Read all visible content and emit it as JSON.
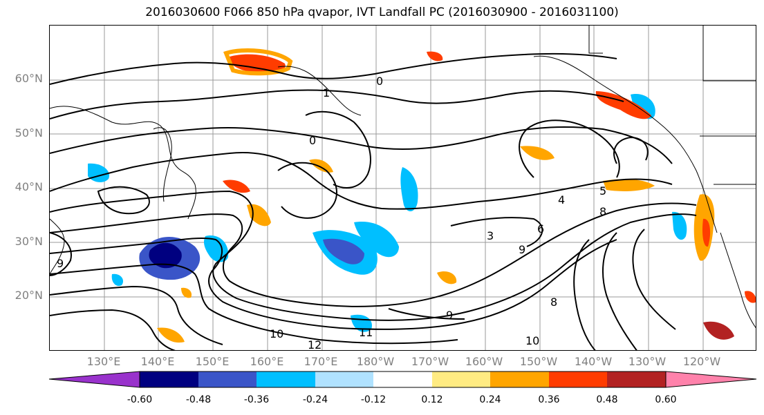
{
  "title": "2016030600 F066 850 hPa qvapor, IVT Landfall PC (2016030900 - 2016031100)",
  "lat_labels": [
    "60°N",
    "50°N",
    "40°N",
    "30°N",
    "20°N"
  ],
  "lon_labels": [
    "130°E",
    "140°E",
    "150°E",
    "160°E",
    "170°E",
    "180°W",
    "170°W",
    "160°W",
    "150°W",
    "140°W",
    "130°W",
    "120°W"
  ],
  "contour_labels": [
    "0",
    "1",
    "0",
    "3",
    "4",
    "5",
    "6",
    "8",
    "9",
    "10",
    "12",
    "11",
    "9",
    "8",
    "10",
    "9"
  ],
  "colorbar": {
    "levels": [
      "-0.60",
      "-0.48",
      "-0.36",
      "-0.24",
      "-0.12",
      "0.12",
      "0.24",
      "0.36",
      "0.48",
      "0.60"
    ],
    "colors": [
      "#9932CC",
      "#000080",
      "#3A55C8",
      "#00BFFF",
      "#B0E2FF",
      "#FFFFFF",
      "#FFEB82",
      "#FFA500",
      "#FF3C00",
      "#B22222",
      "#FF82AB"
    ]
  },
  "colors": {
    "grid": "#999999",
    "coast": "#000000",
    "contour": "#000000",
    "tick_label": "#808080"
  }
}
